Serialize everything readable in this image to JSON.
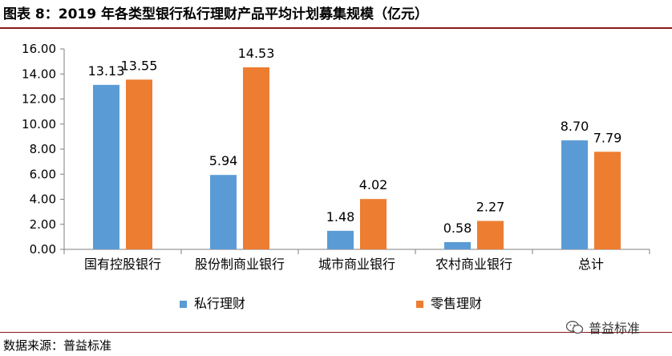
{
  "title": "图表 8：2019 年各类型银行私行理财产品平均计划募集规模（亿元）",
  "source": "数据来源：普益标准",
  "watermark": {
    "text": "普益标准",
    "icon": "wechat-icon"
  },
  "chart_data": {
    "type": "bar",
    "title": "2019 年各类型银行私行理财产品平均计划募集规模（亿元）",
    "xlabel": "",
    "ylabel": "",
    "categories": [
      "国有控股银行",
      "股份制商业银行",
      "城市商业银行",
      "农村商业银行",
      "总计"
    ],
    "series": [
      {
        "name": "私行理财",
        "color": "#5b9bd5",
        "values": [
          13.13,
          5.94,
          1.48,
          0.58,
          8.7
        ]
      },
      {
        "name": "零售理财",
        "color": "#ed7d31",
        "values": [
          13.55,
          14.53,
          4.02,
          2.27,
          7.79
        ]
      }
    ],
    "value_labels": [
      [
        "13.13",
        "5.94",
        "1.48",
        "0.58",
        "8.70"
      ],
      [
        "13.55",
        "14.53",
        "4.02",
        "2.27",
        "7.79"
      ]
    ],
    "ylim": [
      0,
      16
    ],
    "yticks": [
      "0.00",
      "2.00",
      "4.00",
      "6.00",
      "8.00",
      "10.00",
      "12.00",
      "14.00",
      "16.00"
    ],
    "grid": false,
    "legend": "bottom"
  }
}
